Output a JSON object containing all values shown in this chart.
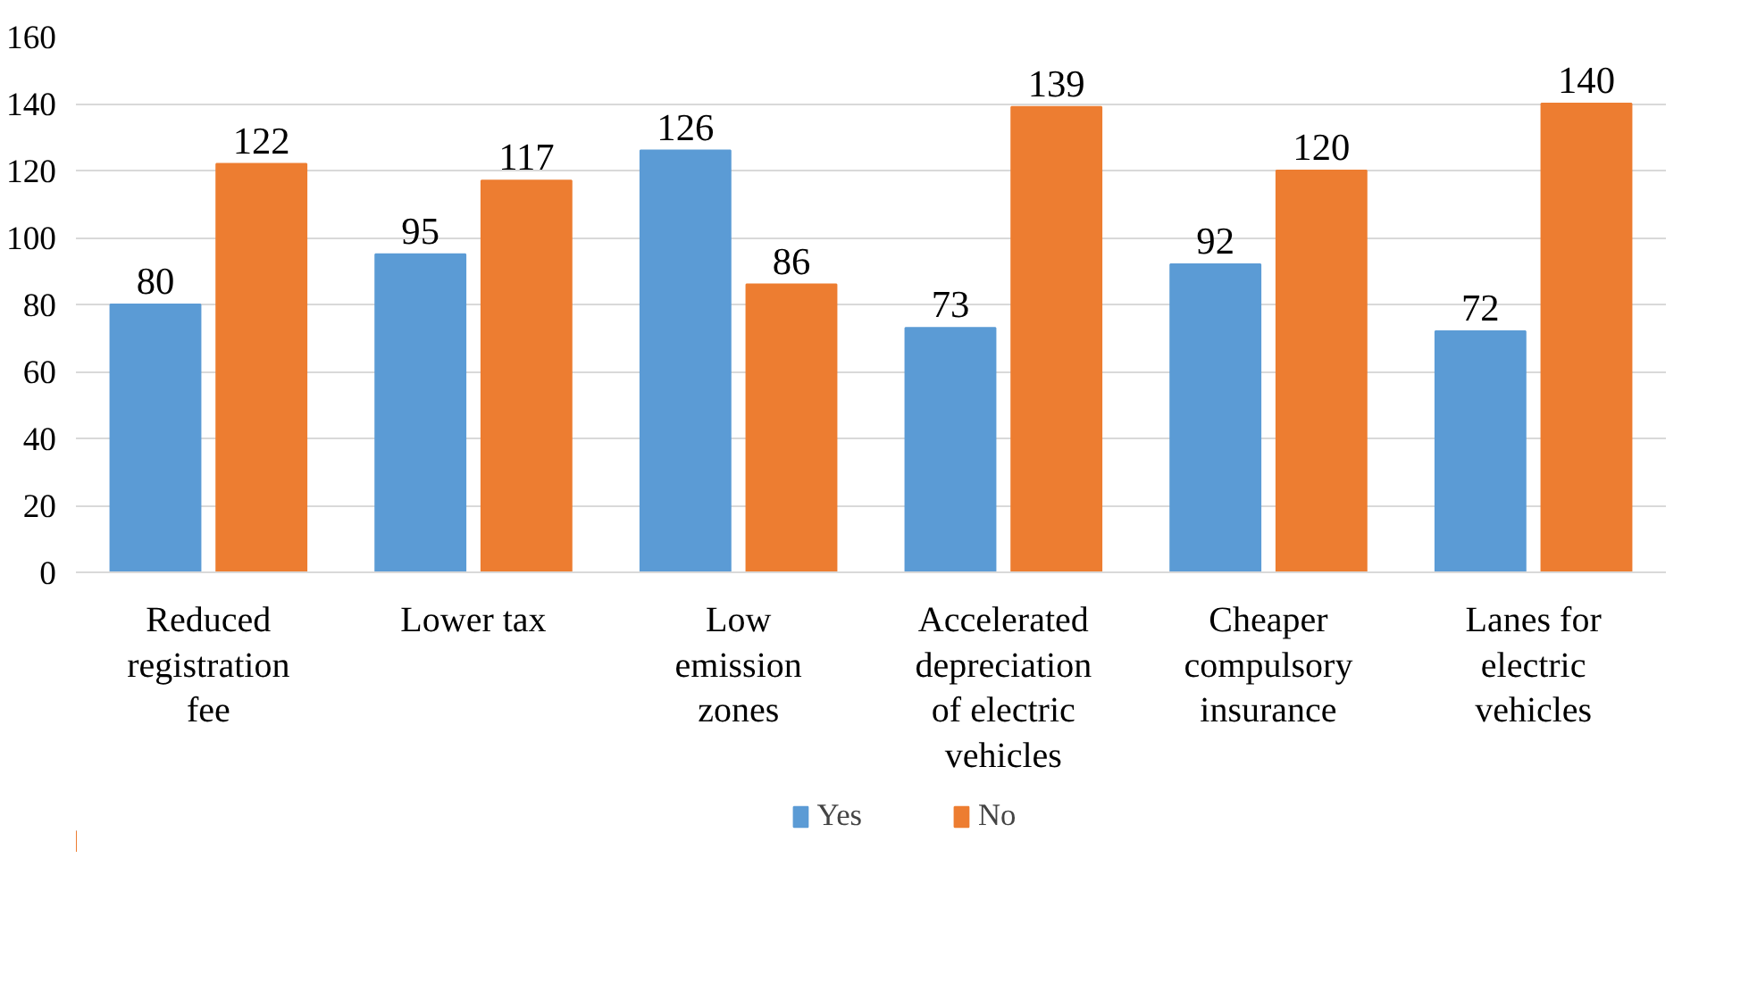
{
  "chart_data": {
    "type": "bar",
    "categories": [
      "Reduced registration fee",
      "Lower tax",
      "Low emission zones",
      "Accelerated depreciation of electric vehicles",
      "Cheaper compulsory insurance",
      "Lanes for electric vehicles"
    ],
    "series": [
      {
        "name": "Yes",
        "color": "#5b9bd5",
        "values": [
          80,
          95,
          126,
          73,
          92,
          72
        ]
      },
      {
        "name": "No",
        "color": "#ed7d31",
        "values": [
          122,
          117,
          86,
          139,
          120,
          140
        ]
      }
    ],
    "ylim": [
      0,
      160
    ],
    "yticks": [
      0,
      20,
      40,
      60,
      80,
      100,
      120,
      140,
      160
    ],
    "grid": "y",
    "legend": "bottom",
    "data_labels": true
  }
}
